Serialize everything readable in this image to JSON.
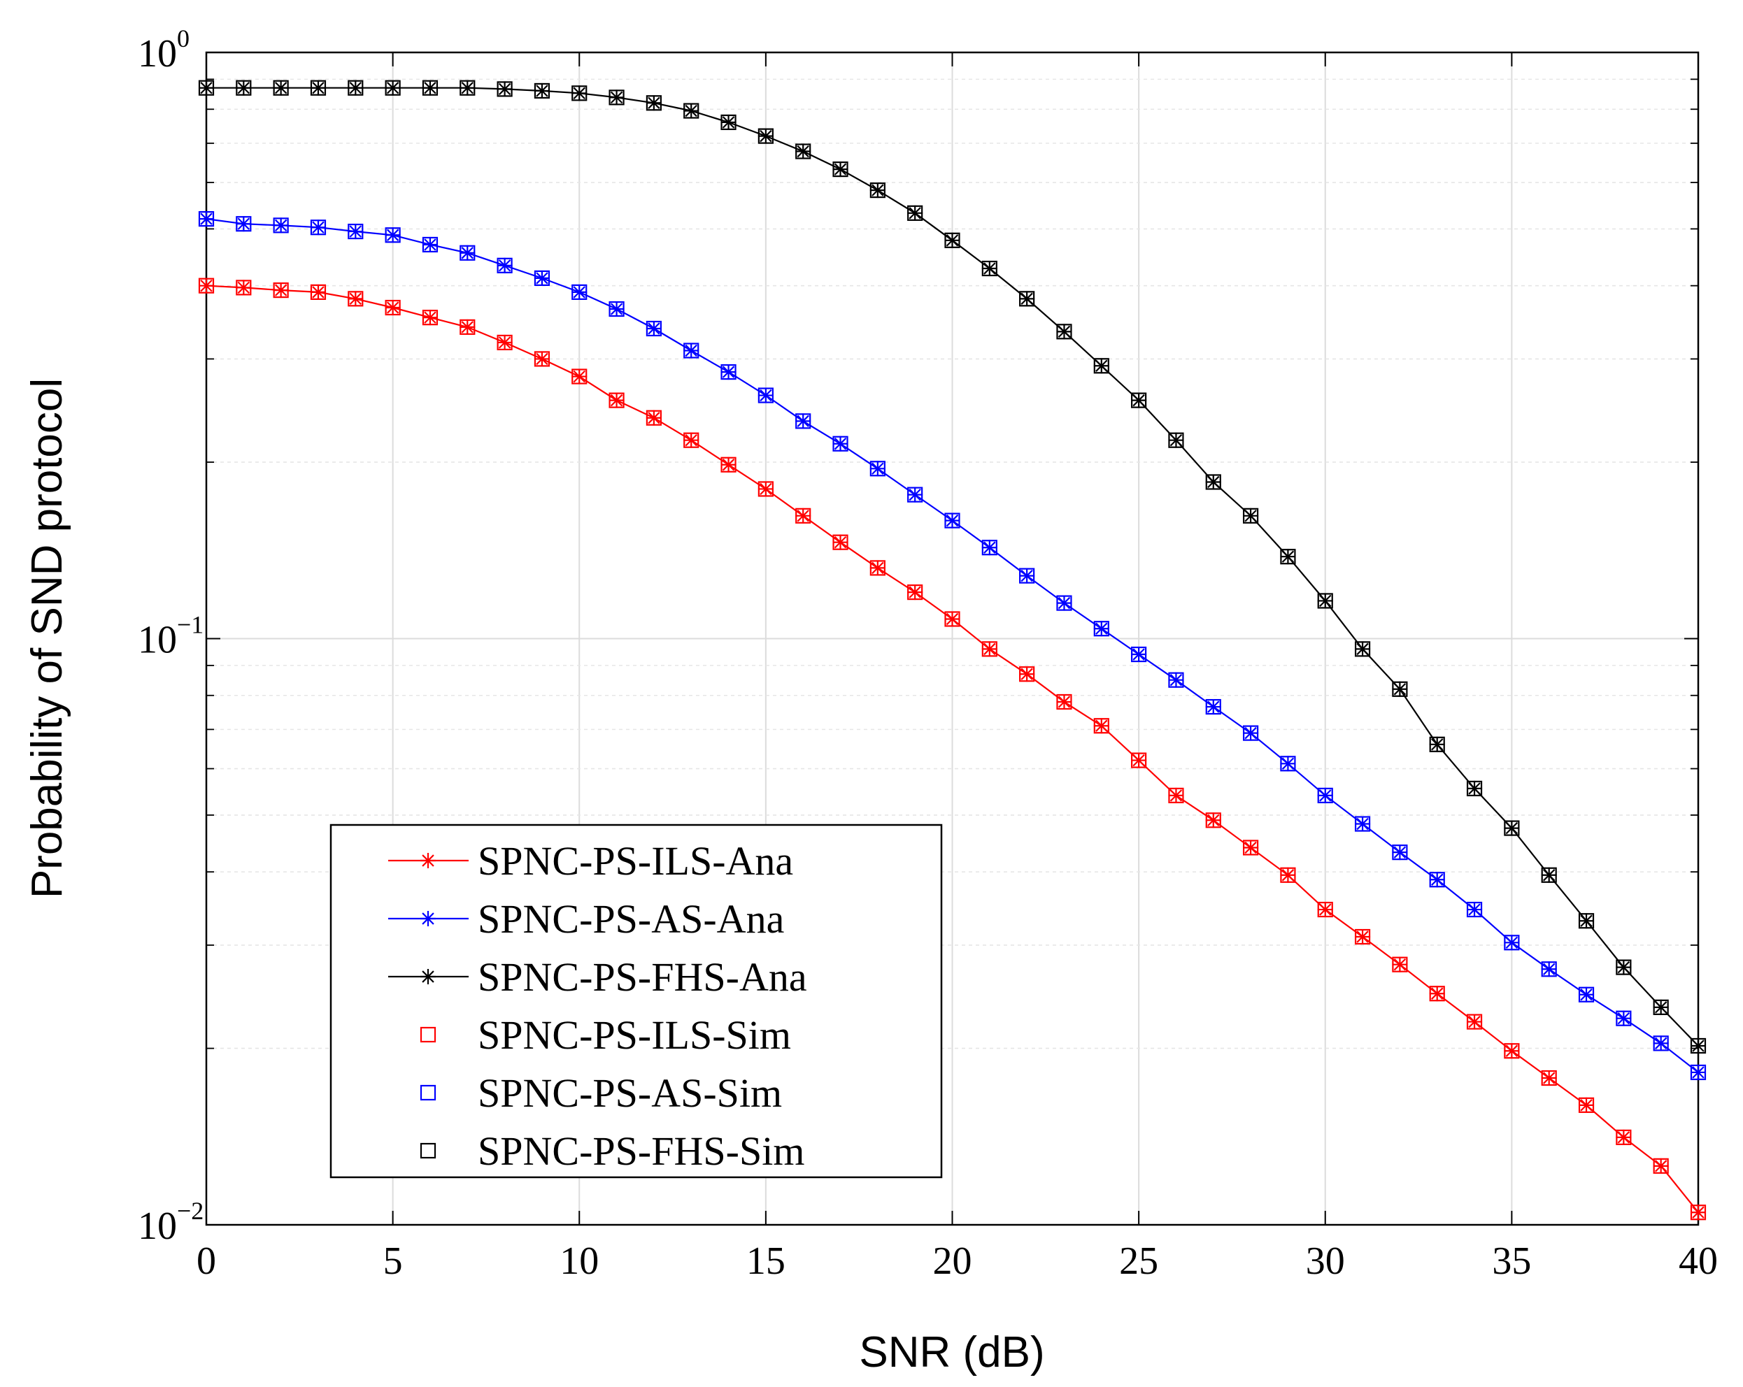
{
  "chart_data": {
    "type": "line",
    "title": "",
    "xlabel": "SNR (dB)",
    "ylabel": "Probability of SND protocol",
    "xlim": [
      0,
      40
    ],
    "ylim": [
      0.01,
      1
    ],
    "yscale": "log",
    "grid": true,
    "legend_position": "bottom-left",
    "x_ticks": [
      0,
      5,
      10,
      15,
      20,
      25,
      30,
      35,
      40
    ],
    "x_tick_labels": [
      "0",
      "5",
      "10",
      "15",
      "20",
      "25",
      "30",
      "35",
      "40"
    ],
    "y_ticks": [
      {
        "value": 0.01,
        "base": "10",
        "exp": "−2"
      },
      {
        "value": 0.1,
        "base": "10",
        "exp": "−1"
      },
      {
        "value": 1,
        "base": "10",
        "exp": "0"
      }
    ],
    "x": [
      0,
      1,
      2,
      3,
      4,
      5,
      6,
      7,
      8,
      9,
      10,
      11,
      12,
      13,
      14,
      15,
      16,
      17,
      18,
      19,
      20,
      21,
      22,
      23,
      24,
      25,
      26,
      27,
      28,
      29,
      30,
      31,
      32,
      33,
      34,
      35,
      36,
      37,
      38,
      39,
      40
    ],
    "series": [
      {
        "name": "SPNC-PS-ILS-Ana",
        "color": "#ff0000",
        "marker": "asterisk",
        "line": true,
        "values": [
          0.4,
          0.397,
          0.393,
          0.39,
          0.38,
          0.367,
          0.353,
          0.34,
          0.32,
          0.3,
          0.28,
          0.255,
          0.238,
          0.218,
          0.198,
          0.18,
          0.162,
          0.146,
          0.132,
          0.12,
          0.108,
          0.096,
          0.087,
          0.078,
          0.071,
          0.062,
          0.054,
          0.049,
          0.044,
          0.0395,
          0.0345,
          0.031,
          0.0278,
          0.0248,
          0.0222,
          0.0198,
          0.0178,
          0.016,
          0.0141,
          0.0126,
          0.0105
        ]
      },
      {
        "name": "SPNC-PS-AS-Ana",
        "color": "#0000ff",
        "marker": "asterisk",
        "line": true,
        "values": [
          0.52,
          0.51,
          0.507,
          0.503,
          0.495,
          0.488,
          0.47,
          0.455,
          0.433,
          0.412,
          0.39,
          0.365,
          0.338,
          0.31,
          0.285,
          0.26,
          0.235,
          0.215,
          0.195,
          0.176,
          0.159,
          0.143,
          0.128,
          0.115,
          0.104,
          0.094,
          0.085,
          0.0765,
          0.069,
          0.0612,
          0.054,
          0.0483,
          0.0432,
          0.0388,
          0.0345,
          0.0303,
          0.0273,
          0.0247,
          0.0225,
          0.0204,
          0.0182
        ]
      },
      {
        "name": "SPNC-PS-FHS-Ana",
        "color": "#000000",
        "marker": "asterisk",
        "line": true,
        "values": [
          0.87,
          0.87,
          0.87,
          0.87,
          0.87,
          0.87,
          0.87,
          0.87,
          0.866,
          0.86,
          0.852,
          0.838,
          0.82,
          0.795,
          0.76,
          0.72,
          0.678,
          0.632,
          0.582,
          0.532,
          0.478,
          0.428,
          0.38,
          0.334,
          0.292,
          0.255,
          0.218,
          0.185,
          0.162,
          0.138,
          0.116,
          0.096,
          0.082,
          0.066,
          0.0555,
          0.0475,
          0.0395,
          0.033,
          0.0275,
          0.0235,
          0.0202
        ]
      },
      {
        "name": "SPNC-PS-ILS-Sim",
        "color": "#ff0000",
        "marker": "square",
        "line": false,
        "values": [
          0.4,
          0.397,
          0.393,
          0.39,
          0.38,
          0.367,
          0.353,
          0.34,
          0.32,
          0.3,
          0.28,
          0.255,
          0.238,
          0.218,
          0.198,
          0.18,
          0.162,
          0.146,
          0.132,
          0.12,
          0.108,
          0.096,
          0.087,
          0.078,
          0.071,
          0.062,
          0.054,
          0.049,
          0.044,
          0.0395,
          0.0345,
          0.031,
          0.0278,
          0.0248,
          0.0222,
          0.0198,
          0.0178,
          0.016,
          0.0141,
          0.0126,
          0.0105
        ]
      },
      {
        "name": "SPNC-PS-AS-Sim",
        "color": "#0000ff",
        "marker": "square",
        "line": false,
        "values": [
          0.52,
          0.51,
          0.507,
          0.503,
          0.495,
          0.488,
          0.47,
          0.455,
          0.433,
          0.412,
          0.39,
          0.365,
          0.338,
          0.31,
          0.285,
          0.26,
          0.235,
          0.215,
          0.195,
          0.176,
          0.159,
          0.143,
          0.128,
          0.115,
          0.104,
          0.094,
          0.085,
          0.0765,
          0.069,
          0.0612,
          0.054,
          0.0483,
          0.0432,
          0.0388,
          0.0345,
          0.0303,
          0.0273,
          0.0247,
          0.0225,
          0.0204,
          0.0182
        ]
      },
      {
        "name": "SPNC-PS-FHS-Sim",
        "color": "#000000",
        "marker": "square",
        "line": false,
        "values": [
          0.87,
          0.87,
          0.87,
          0.87,
          0.87,
          0.87,
          0.87,
          0.87,
          0.866,
          0.86,
          0.852,
          0.838,
          0.82,
          0.795,
          0.76,
          0.72,
          0.678,
          0.632,
          0.582,
          0.532,
          0.478,
          0.428,
          0.38,
          0.334,
          0.292,
          0.255,
          0.218,
          0.185,
          0.162,
          0.138,
          0.116,
          0.096,
          0.082,
          0.066,
          0.0555,
          0.0475,
          0.0395,
          0.033,
          0.0275,
          0.0235,
          0.0202
        ]
      }
    ]
  }
}
